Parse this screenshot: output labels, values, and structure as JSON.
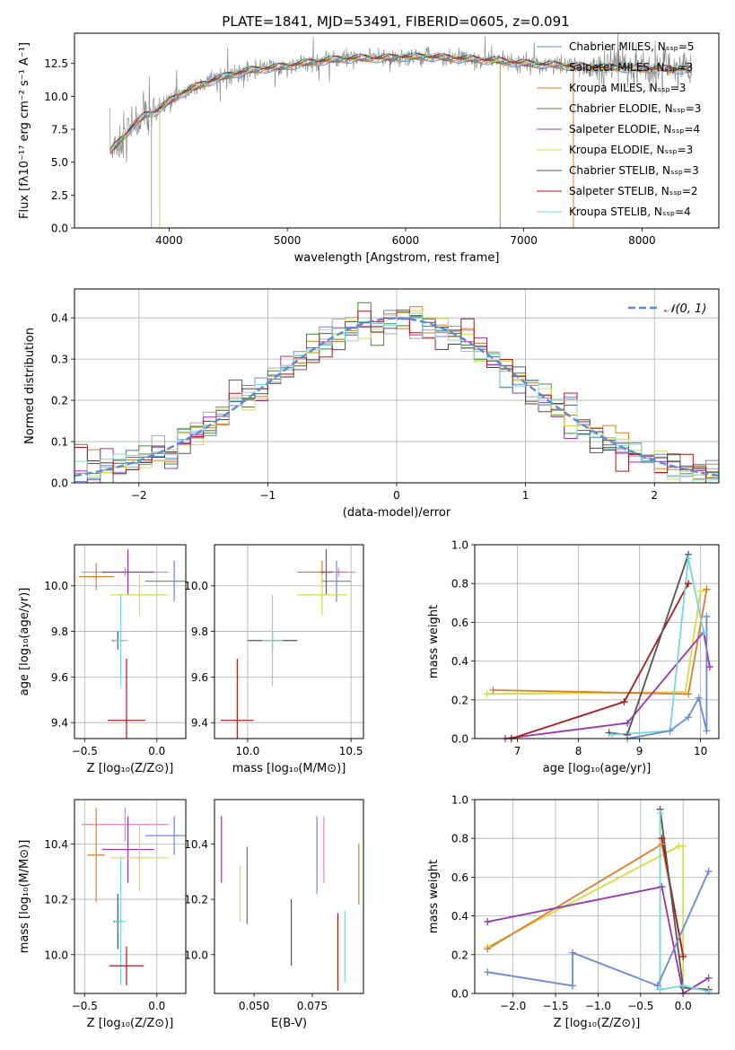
{
  "figure_title": "PLATE=1841, MJD=53491, FIBERID=0605, z=0.091",
  "colors": {
    "Chabrier MILES": "#6a8ad8",
    "Salpeter MILES": "#a8a8a8",
    "Kroupa MILES": "#e07c2c",
    "Chabrier ELODIE": "#3e8a3e",
    "Salpeter ELODIE": "#9a35b0",
    "Kroupa ELODIE": "#d6dc48",
    "Chabrier STELIB": "#555555",
    "Salpeter STELIB": "#b01818",
    "Kroupa STELIB": "#78d8d8",
    "data": "#808080",
    "normal": "#5a8ad0",
    "pink": "#e384c0",
    "lime": "#bfe060"
  },
  "chart_data": [
    {
      "id": "spectrum",
      "type": "line",
      "title": "PLATE=1841, MJD=53491, FIBERID=0605, z=0.091",
      "xlabel": "wavelength [Angstrom, rest frame]",
      "ylabel": "Flux [fλ10⁻¹⁷ erg cm⁻² s⁻¹ A⁻¹]",
      "xlim": [
        3200,
        8650
      ],
      "ylim": [
        0,
        14.8
      ],
      "xticks": [
        4000,
        5000,
        6000,
        7000,
        8000
      ],
      "xticklabels": [
        "4000",
        "5000",
        "6000",
        "7000",
        "8000"
      ],
      "yticks": [
        0,
        2.5,
        5,
        7.5,
        10,
        12.5
      ],
      "yticklabels": [
        "0.0",
        "2.5",
        "5.0",
        "7.5",
        "10.0",
        "12.5"
      ],
      "grid": false,
      "legend": "right",
      "legend_entries": [
        "Chabrier MILES, Nₛₛₚ=5",
        "Salpeter MILES, Nₛₛₚ=3",
        "Kroupa MILES, Nₛₛₚ=3",
        "Chabrier ELODIE, Nₛₛₚ=3",
        "Salpeter ELODIE, Nₛₛₚ=4",
        "Kroupa ELODIE, Nₛₛₚ=3",
        "Chabrier STELIB, Nₛₛₚ=3",
        "Salpeter STELIB, Nₛₛₚ=2",
        "Kroupa STELIB, Nₛₛₚ=4"
      ],
      "series_keys": [
        "Chabrier MILES",
        "Salpeter MILES",
        "Kroupa MILES",
        "Chabrier ELODIE",
        "Salpeter ELODIE",
        "Kroupa ELODIE",
        "Chabrier STELIB",
        "Salpeter STELIB",
        "Kroupa STELIB"
      ],
      "model_points": {
        "x": [
          3500,
          3600,
          3700,
          3800,
          3900,
          4000,
          4100,
          4200,
          4300,
          4400,
          4500,
          4600,
          4700,
          4800,
          4900,
          5000,
          5200,
          5400,
          5600,
          5800,
          6000,
          6200,
          6400,
          6600,
          6800,
          7000,
          7200,
          7400,
          7600,
          7800,
          8000,
          8200,
          8400
        ],
        "y": [
          5.8,
          6.8,
          7.8,
          8.6,
          8.9,
          9.6,
          10.2,
          10.6,
          11.0,
          11.3,
          11.6,
          11.8,
          12.0,
          12.1,
          12.2,
          12.3,
          12.6,
          12.8,
          12.9,
          12.9,
          13.0,
          13.0,
          12.9,
          12.8,
          12.7,
          12.5,
          12.4,
          12.3,
          12.2,
          12.2,
          12.1,
          12.1,
          12.0
        ]
      },
      "dropouts": [
        {
          "x": 3850,
          "key": "Salpeter MILES"
        },
        {
          "x": 3920,
          "key": "Kroupa ELODIE"
        },
        {
          "x": 6800,
          "key": "Kroupa MILES"
        },
        {
          "x": 7420,
          "key": "Kroupa MILES"
        }
      ]
    },
    {
      "id": "residuals",
      "type": "line",
      "xlabel": "(data-model)/error",
      "ylabel": "Normed distribution",
      "xlim": [
        -2.5,
        2.5
      ],
      "ylim": [
        0,
        0.47
      ],
      "xticks": [
        -2,
        -1,
        0,
        1,
        2
      ],
      "xticklabels": [
        "−2",
        "−1",
        "0",
        "1",
        "2"
      ],
      "yticks": [
        0,
        0.1,
        0.2,
        0.3,
        0.4
      ],
      "yticklabels": [
        "0.0",
        "0.1",
        "0.2",
        "0.3",
        "0.4"
      ],
      "grid": true,
      "legend": "top-right",
      "legend_entries": [
        "𝒩(0, 1)"
      ],
      "bin_width": 0.1
    },
    {
      "id": "age_vs_Z",
      "type": "scatter",
      "xlabel": "Z [log₁₀(Z/Z⊙)]",
      "ylabel": "age  [log₁₀(age/yr)]",
      "xlim": [
        -0.57,
        0.2
      ],
      "ylim": [
        9.33,
        10.18
      ],
      "xticks": [
        -0.5,
        0.0
      ],
      "xticklabels": [
        "−0.5",
        "0.0"
      ],
      "yticks": [
        9.4,
        9.6,
        9.8,
        10.0
      ],
      "yticklabels": [
        "9.4",
        "9.6",
        "9.8",
        "10.0"
      ],
      "grid": true,
      "points": [
        {
          "key": "Chabrier MILES",
          "x": 0.12,
          "y": 10.02,
          "xerr": 0.2,
          "yerr": 0.09
        },
        {
          "key": "pink",
          "x": -0.22,
          "y": 10.06,
          "xerr": 0.3,
          "yerr": 0.02
        },
        {
          "key": "Kroupa MILES",
          "x": -0.42,
          "y": 10.04,
          "xerr": 0.12,
          "yerr": 0.06
        },
        {
          "key": "Salpeter ELODIE",
          "x": -0.2,
          "y": 10.06,
          "xerr": 0.18,
          "yerr": 0.1
        },
        {
          "key": "Kroupa ELODIE",
          "x": -0.12,
          "y": 9.96,
          "xerr": 0.2,
          "yerr": 0.09
        },
        {
          "key": "Chabrier STELIB",
          "x": -0.27,
          "y": 9.76,
          "xerr": 0.04,
          "yerr": 0.04
        },
        {
          "key": "Kroupa STELIB",
          "x": -0.25,
          "y": 9.76,
          "xerr": 0.05,
          "yerr": 0.2
        },
        {
          "key": "Salpeter STELIB",
          "x": -0.21,
          "y": 9.41,
          "xerr": 0.13,
          "yerr": 0.27
        }
      ]
    },
    {
      "id": "age_vs_mass",
      "type": "scatter",
      "xlabel": "mass [log₁₀(M/M⊙)]",
      "ylabel": "",
      "xlim": [
        9.84,
        10.56
      ],
      "ylim": [
        9.33,
        10.18
      ],
      "xticks": [
        10.0,
        10.5
      ],
      "xticklabels": [
        "10.0",
        "10.5"
      ],
      "yticks": [
        9.4,
        9.6,
        9.8,
        10.0
      ],
      "yticklabels": [
        "9.4",
        "9.6",
        "9.8",
        "10.0"
      ],
      "grid": true,
      "points": [
        {
          "key": "Chabrier MILES",
          "x": 10.43,
          "y": 10.02,
          "xerr": 0.07,
          "yerr": 0.09
        },
        {
          "key": "pink",
          "x": 10.44,
          "y": 10.06,
          "xerr": 0.08,
          "yerr": 0.02
        },
        {
          "key": "Kroupa MILES",
          "x": 10.36,
          "y": 10.06,
          "xerr": 0.12,
          "yerr": 0.05
        },
        {
          "key": "Salpeter ELODIE",
          "x": 10.38,
          "y": 10.06,
          "xerr": 0.03,
          "yerr": 0.1
        },
        {
          "key": "Kroupa ELODIE",
          "x": 10.36,
          "y": 9.96,
          "xerr": 0.12,
          "yerr": 0.09
        },
        {
          "key": "Chabrier STELIB",
          "x": 10.12,
          "y": 9.76,
          "xerr": 0.12,
          "yerr": 0.04
        },
        {
          "key": "Kroupa STELIB",
          "x": 10.12,
          "y": 9.76,
          "xerr": 0.05,
          "yerr": 0.2
        },
        {
          "key": "Salpeter STELIB",
          "x": 9.95,
          "y": 9.41,
          "xerr": 0.08,
          "yerr": 0.27
        }
      ]
    },
    {
      "id": "weight_vs_age",
      "type": "line",
      "xlabel": "age  [log₁₀(age/yr)]",
      "ylabel": "mass weight",
      "xlim": [
        6.3,
        10.3
      ],
      "ylim": [
        0,
        1
      ],
      "xticks": [
        7,
        8,
        9,
        10
      ],
      "xticklabels": [
        "7",
        "8",
        "9",
        "10"
      ],
      "yticks": [
        0,
        0.2,
        0.4,
        0.6,
        0.8,
        1.0
      ],
      "yticklabels": [
        "0.0",
        "0.2",
        "0.4",
        "0.6",
        "0.8",
        "1.0"
      ],
      "grid": true,
      "series": [
        {
          "key": "Kroupa ELODIE",
          "x": [
            6.5,
            9.75,
            10.0,
            10.1
          ],
          "y": [
            0.23,
            0.24,
            0.76,
            0.77
          ]
        },
        {
          "key": "Kroupa MILES",
          "x": [
            6.6,
            9.8,
            10.1
          ],
          "y": [
            0.25,
            0.23,
            0.77
          ]
        },
        {
          "key": "Salpeter ELODIE",
          "x": [
            6.8,
            8.8,
            10.05,
            10.15
          ],
          "y": [
            0.0,
            0.08,
            0.55,
            0.37
          ]
        },
        {
          "key": "Salpeter STELIB",
          "x": [
            6.9,
            8.75,
            9.8
          ],
          "y": [
            0.0,
            0.19,
            0.8
          ]
        },
        {
          "key": "Chabrier STELIB",
          "x": [
            8.5,
            8.8,
            9.8
          ],
          "y": [
            0.03,
            0.02,
            0.95
          ]
        },
        {
          "key": "Kroupa STELIB",
          "x": [
            8.55,
            9.5,
            9.8,
            10.05
          ],
          "y": [
            0.02,
            0.04,
            0.93,
            0.55
          ]
        },
        {
          "key": "Chabrier MILES",
          "x": [
            8.8,
            9.5,
            9.8,
            9.97,
            10.1,
            10.1
          ],
          "y": [
            0.0,
            0.04,
            0.11,
            0.21,
            0.04,
            0.63
          ]
        }
      ]
    },
    {
      "id": "mass_vs_Z",
      "type": "scatter",
      "xlabel": "Z [log₁₀(Z/Z⊙)]",
      "ylabel": "mass [log₁₀(M/M⊙)]",
      "xlim": [
        -0.57,
        0.2
      ],
      "ylim": [
        9.86,
        10.56
      ],
      "xticks": [
        -0.5,
        0.0
      ],
      "xticklabels": [
        "−0.5",
        "0.0"
      ],
      "yticks": [
        10.0,
        10.2,
        10.4
      ],
      "yticklabels": [
        "10.0",
        "10.2",
        "10.4"
      ],
      "grid": true,
      "points": [
        {
          "key": "Chabrier MILES",
          "x": 0.12,
          "y": 10.43,
          "xerr": 0.2,
          "yerr": 0.07
        },
        {
          "key": "pink",
          "x": -0.22,
          "y": 10.47,
          "xerr": 0.3,
          "yerr": 0.06
        },
        {
          "key": "Kroupa MILES",
          "x": -0.42,
          "y": 10.36,
          "xerr": 0.06,
          "yerr": 0.17
        },
        {
          "key": "Salpeter ELODIE",
          "x": -0.2,
          "y": 10.38,
          "xerr": 0.18,
          "yerr": 0.12
        },
        {
          "key": "Kroupa ELODIE",
          "x": -0.12,
          "y": 10.35,
          "xerr": 0.2,
          "yerr": 0.12
        },
        {
          "key": "Chabrier STELIB",
          "x": -0.27,
          "y": 10.12,
          "xerr": 0.03,
          "yerr": 0.1
        },
        {
          "key": "Kroupa STELIB",
          "x": -0.25,
          "y": 10.12,
          "xerr": 0.04,
          "yerr": 0.23
        },
        {
          "key": "Salpeter STELIB",
          "x": -0.21,
          "y": 9.96,
          "xerr": 0.12,
          "yerr": 0.07
        }
      ]
    },
    {
      "id": "mass_vs_ebv",
      "type": "scatter",
      "xlabel": "E(B-V)",
      "ylabel": "",
      "xlim": [
        0.033,
        0.097
      ],
      "ylim": [
        9.86,
        10.56
      ],
      "xticks": [
        0.05,
        0.075
      ],
      "xticklabels": [
        "0.050",
        "0.075"
      ],
      "yticks": [
        10.0,
        10.2,
        10.4
      ],
      "yticklabels": [
        "10.0",
        "10.2",
        "10.4"
      ],
      "grid": false,
      "points": [
        {
          "key": "Salpeter ELODIE",
          "x": 0.036,
          "y": 10.38,
          "yerr": 0.12
        },
        {
          "key": "Kroupa ELODIE",
          "x": 0.044,
          "y": 10.22,
          "yerr": 0.1
        },
        {
          "key": "Chabrier ELODIE",
          "x": 0.047,
          "y": 10.25,
          "yerr": 0.14
        },
        {
          "key": "Chabrier STELIB",
          "x": 0.066,
          "y": 10.08,
          "yerr": 0.12
        },
        {
          "key": "Chabrier MILES",
          "x": 0.077,
          "y": 10.36,
          "yerr": 0.14
        },
        {
          "key": "pink",
          "x": 0.08,
          "y": 10.38,
          "yerr": 0.12
        },
        {
          "key": "Salpeter STELIB",
          "x": 0.086,
          "y": 10.01,
          "yerr": 0.14
        },
        {
          "key": "Kroupa STELIB",
          "x": 0.089,
          "y": 10.03,
          "yerr": 0.13
        },
        {
          "key": "Kroupa MILES",
          "x": 0.095,
          "y": 10.29,
          "yerr": 0.11
        }
      ]
    },
    {
      "id": "weight_vs_Z",
      "type": "line",
      "xlabel": "Z [log₁₀(Z/Z⊙)]",
      "ylabel": "mass weight",
      "xlim": [
        -2.45,
        0.42
      ],
      "ylim": [
        0,
        1
      ],
      "xticks": [
        -2.0,
        -1.5,
        -1.0,
        -0.5,
        0.0
      ],
      "xticklabels": [
        "−2.0",
        "−1.5",
        "−1.0",
        "−0.5",
        "0.0"
      ],
      "yticks": [
        0,
        0.2,
        0.4,
        0.6,
        0.8,
        1.0
      ],
      "yticklabels": [
        "0.0",
        "0.2",
        "0.4",
        "0.6",
        "0.8",
        "1.0"
      ],
      "grid": true,
      "series": [
        {
          "key": "Kroupa ELODIE",
          "x": [
            -2.3,
            -0.05,
            0.0,
            0.0
          ],
          "y": [
            0.24,
            0.76,
            0.76,
            0.0
          ]
        },
        {
          "key": "Kroupa MILES",
          "x": [
            -2.3,
            -0.25,
            0.0
          ],
          "y": [
            0.23,
            0.77,
            0.2
          ]
        },
        {
          "key": "Salpeter ELODIE",
          "x": [
            -2.3,
            -0.25,
            0.0,
            0.3
          ],
          "y": [
            0.37,
            0.55,
            0.0,
            0.08
          ]
        },
        {
          "key": "Salpeter STELIB",
          "x": [
            -0.25,
            0.0
          ],
          "y": [
            0.8,
            0.19
          ]
        },
        {
          "key": "Chabrier STELIB",
          "x": [
            -0.27,
            0.0,
            0.3
          ],
          "y": [
            0.95,
            0.03,
            0.02
          ]
        },
        {
          "key": "Kroupa STELIB",
          "x": [
            -0.27,
            -0.27,
            0.0,
            0.3
          ],
          "y": [
            0.93,
            0.02,
            0.04,
            0.01
          ]
        },
        {
          "key": "Chabrier MILES",
          "x": [
            -2.3,
            -1.3,
            -1.3,
            -0.3,
            0.3
          ],
          "y": [
            0.11,
            0.04,
            0.21,
            0.04,
            0.63
          ]
        }
      ]
    }
  ]
}
